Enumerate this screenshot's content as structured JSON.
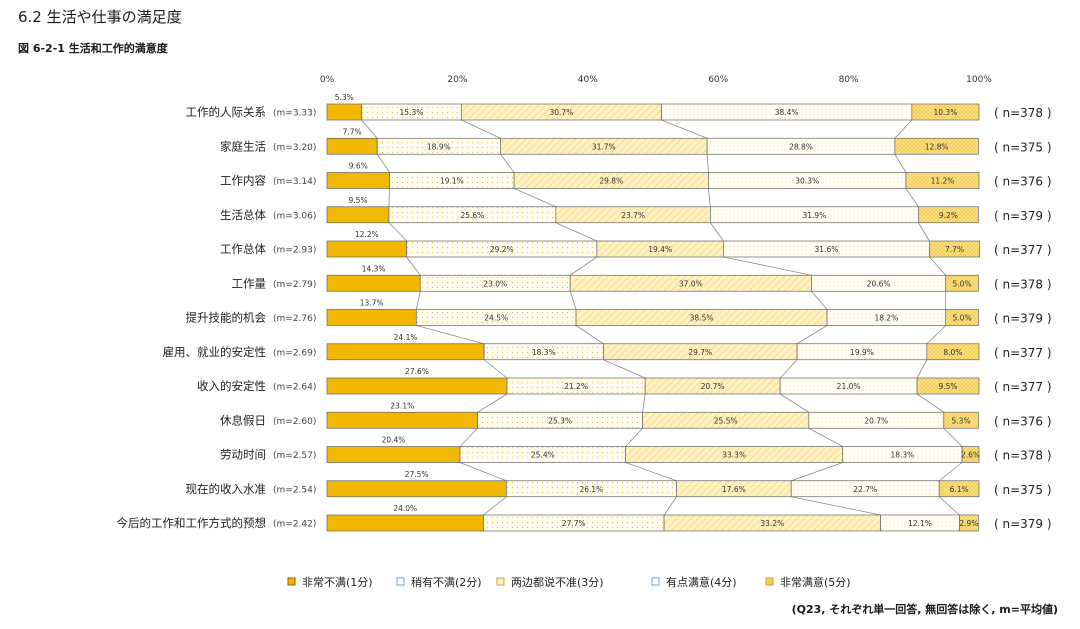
{
  "section_title": "6.2 生活や仕事の満足度",
  "figure_title": "図 6-2-1  生活和工作的満意度",
  "note": "(Q23, それぞれ単一回答, 無回答は除く, m=平均値)",
  "colors": {
    "s1": "#f2b700",
    "s2": "#fffbee",
    "s3": "#fff0bf",
    "s4": "#fffdf4",
    "s5": "#f7ce52",
    "bar_stroke": "#666666",
    "connector": "#8c8c8c",
    "legend_s2": "#7f9fc6",
    "legend_s4": "#7f9fc6"
  },
  "chart_data": {
    "type": "bar",
    "orientation": "horizontal",
    "stacked": true,
    "xlim": [
      0,
      100
    ],
    "xticks": [
      "0%",
      "20%",
      "40%",
      "60%",
      "80%",
      "100%"
    ],
    "legend_position": "bottom",
    "categories": [
      {
        "label": "工作的人际关系",
        "mean": "(m=3.33)",
        "n": "( n=378 )"
      },
      {
        "label": "家庭生活",
        "mean": "(m=3.20)",
        "n": "( n=375 )"
      },
      {
        "label": "工作内容",
        "mean": "(m=3.14)",
        "n": "( n=376 )"
      },
      {
        "label": "生活总体",
        "mean": "(m=3.06)",
        "n": "( n=379 )"
      },
      {
        "label": "工作总体",
        "mean": "(m=2.93)",
        "n": "( n=377 )"
      },
      {
        "label": "工作量",
        "mean": "(m=2.79)",
        "n": "( n=378 )"
      },
      {
        "label": "提升技能的机会",
        "mean": "(m=2.76)",
        "n": "( n=379 )"
      },
      {
        "label": "雇用、就业的安定性",
        "mean": "(m=2.69)",
        "n": "( n=377 )"
      },
      {
        "label": "收入的安定性",
        "mean": "(m=2.64)",
        "n": "( n=377 )"
      },
      {
        "label": "休息假日",
        "mean": "(m=2.60)",
        "n": "( n=376 )"
      },
      {
        "label": "劳动时间",
        "mean": "(m=2.57)",
        "n": "( n=378 )"
      },
      {
        "label": "现在的收入水准",
        "mean": "(m=2.54)",
        "n": "( n=375 )"
      },
      {
        "label": "今后的工作和工作方式的预想",
        "mean": "(m=2.42)",
        "n": "( n=379 )"
      }
    ],
    "series": [
      {
        "name": "非常不满(1分)",
        "values": [
          5.3,
          7.7,
          9.6,
          9.5,
          12.2,
          14.3,
          13.7,
          24.1,
          27.6,
          23.1,
          20.4,
          27.5,
          24.0
        ],
        "labels": [
          "5.3%",
          "7.7%",
          "9.6%",
          "9.5%",
          "12.2%",
          "14.3%",
          "13.7%",
          "24.1%",
          "27.6%",
          "23.1%",
          "20.4%",
          "27.5%",
          "24.0%"
        ]
      },
      {
        "name": "稍有不满(2分)",
        "values": [
          15.3,
          18.9,
          19.1,
          25.6,
          29.2,
          23.0,
          24.5,
          18.3,
          21.2,
          25.3,
          25.4,
          26.1,
          27.7
        ],
        "labels": [
          "15.3%",
          "18.9%",
          "19.1%",
          "25.6%",
          "29.2%",
          "23.0%",
          "24.5%",
          "18.3%",
          "21.2%",
          "25.3%",
          "25.4%",
          "26.1%",
          "27.7%"
        ]
      },
      {
        "name": "两边都说不准(3分)",
        "values": [
          30.7,
          31.7,
          29.8,
          23.7,
          19.4,
          37.0,
          38.5,
          29.7,
          20.7,
          25.5,
          33.3,
          17.6,
          33.2
        ],
        "labels": [
          "30.7%",
          "31.7%",
          "29.8%",
          "23.7%",
          "19.4%",
          "37.0%",
          "38.5%",
          "29.7%",
          "20.7%",
          "25.5%",
          "33.3%",
          "17.6%",
          "33.2%"
        ]
      },
      {
        "name": "有点满意(4分)",
        "values": [
          38.4,
          28.8,
          30.3,
          31.9,
          31.6,
          20.6,
          18.2,
          19.9,
          21.0,
          20.7,
          18.3,
          22.7,
          12.1
        ],
        "labels": [
          "38.4%",
          "28.8%",
          "30.3%",
          "31.9%",
          "31.6%",
          "20.6%",
          "18.2%",
          "19.9%",
          "21.0%",
          "20.7%",
          "18.3%",
          "22.7%",
          "12.1%"
        ]
      },
      {
        "name": "非常满意(5分)",
        "values": [
          10.3,
          12.8,
          11.2,
          9.2,
          7.7,
          5.0,
          5.0,
          8.0,
          9.5,
          5.3,
          2.6,
          6.1,
          2.9
        ],
        "labels": [
          "10.3%",
          "12.8%",
          "11.2%",
          "9.2%",
          "7.7%",
          "5.0%",
          "5.0%",
          "8.0%",
          "9.5%",
          "5.3%",
          "2.6%",
          "6.1%",
          "2.9%"
        ]
      }
    ]
  }
}
